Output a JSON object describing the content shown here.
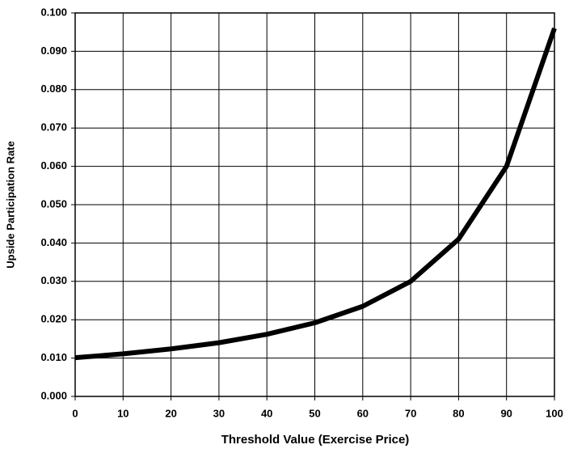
{
  "chart_data": {
    "type": "line",
    "xlabel": "Threshold Value (Exercise Price)",
    "ylabel": "Upside Participation Rate",
    "x": [
      0,
      10,
      20,
      30,
      40,
      50,
      60,
      70,
      80,
      90,
      100
    ],
    "series": [
      {
        "name": "Upside Participation Rate",
        "color": "#000000",
        "values": [
          0.0101,
          0.0111,
          0.0124,
          0.014,
          0.0162,
          0.0192,
          0.0235,
          0.03,
          0.041,
          0.06,
          0.096
        ]
      }
    ],
    "xlim": [
      0,
      100
    ],
    "xticks": [
      0,
      10,
      20,
      30,
      40,
      50,
      60,
      70,
      80,
      90,
      100
    ],
    "ylim": [
      0,
      0.1
    ],
    "yticks": [
      {
        "value": 0,
        "label": "0.000"
      },
      {
        "value": 0.01,
        "label": "0.010"
      },
      {
        "value": 0.02,
        "label": "0.020"
      },
      {
        "value": 0.03,
        "label": "0.030"
      },
      {
        "value": 0.04,
        "label": "0.040"
      },
      {
        "value": 0.05,
        "label": "0.050"
      },
      {
        "value": 0.06,
        "label": "0.060"
      },
      {
        "value": 0.07,
        "label": "0.070"
      },
      {
        "value": 0.08,
        "label": "0.080"
      },
      {
        "value": 0.09,
        "label": "0.090"
      },
      {
        "value": 0.1,
        "label": "0.100"
      }
    ],
    "grid": true
  }
}
